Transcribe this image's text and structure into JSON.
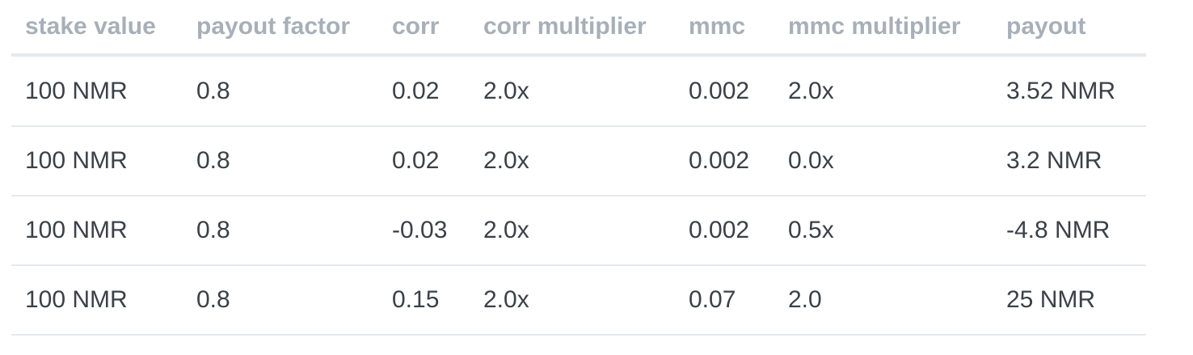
{
  "table": {
    "headers": [
      "stake value",
      "payout factor",
      "corr",
      "corr multiplier",
      "mmc",
      "mmc multiplier",
      "payout"
    ],
    "rows": [
      [
        "100 NMR",
        "0.8",
        "0.02",
        "2.0x",
        "0.002",
        "2.0x",
        "3.52 NMR"
      ],
      [
        "100 NMR",
        "0.8",
        "0.02",
        "2.0x",
        "0.002",
        "0.0x",
        "3.2 NMR"
      ],
      [
        "100 NMR",
        "0.8",
        "-0.03",
        "2.0x",
        "0.002",
        "0.5x",
        "-4.8 NMR"
      ],
      [
        "100 NMR",
        "0.8",
        "0.15",
        "2.0x",
        "0.07",
        "2.0",
        "25 NMR"
      ]
    ]
  }
}
